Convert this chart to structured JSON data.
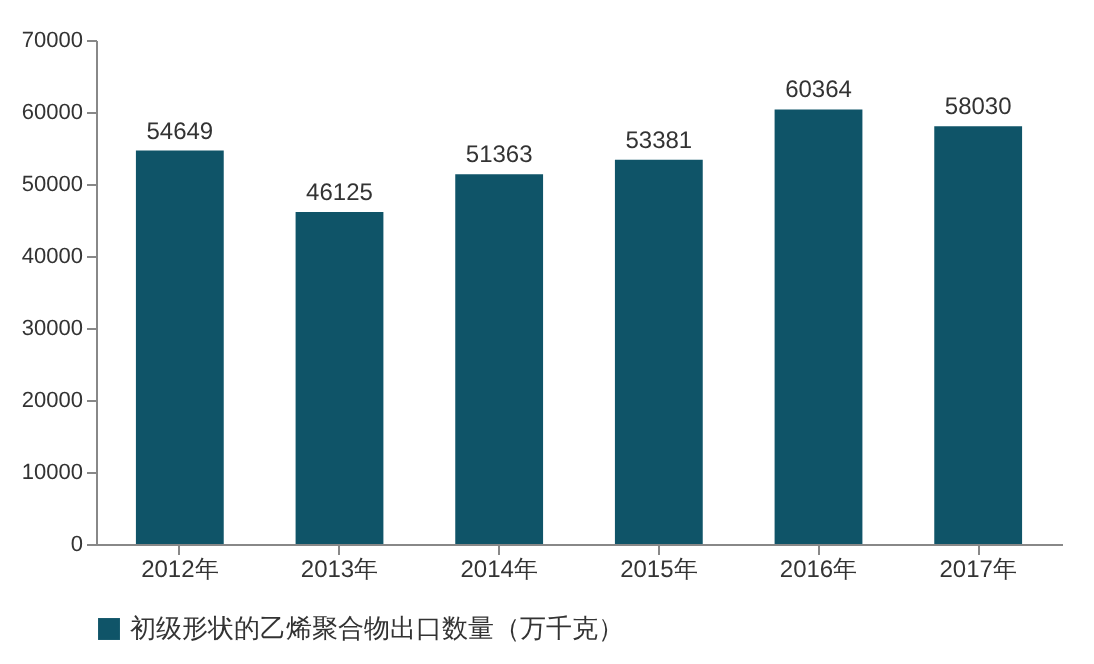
{
  "chart_data": {
    "type": "bar",
    "categories": [
      "2012年",
      "2013年",
      "2014年",
      "2015年",
      "2016年",
      "2017年"
    ],
    "series": [
      {
        "name": "初级形状的乙烯聚合物出口数量（万千克）",
        "color": "#0f5468",
        "values": [
          54649,
          46125,
          51363,
          53381,
          60364,
          58030
        ]
      }
    ],
    "ylim": [
      0,
      70000
    ],
    "yticks": [
      0,
      10000,
      20000,
      30000,
      40000,
      50000,
      60000,
      70000
    ],
    "data_labels": true,
    "legend": "bottom",
    "grid": false
  }
}
